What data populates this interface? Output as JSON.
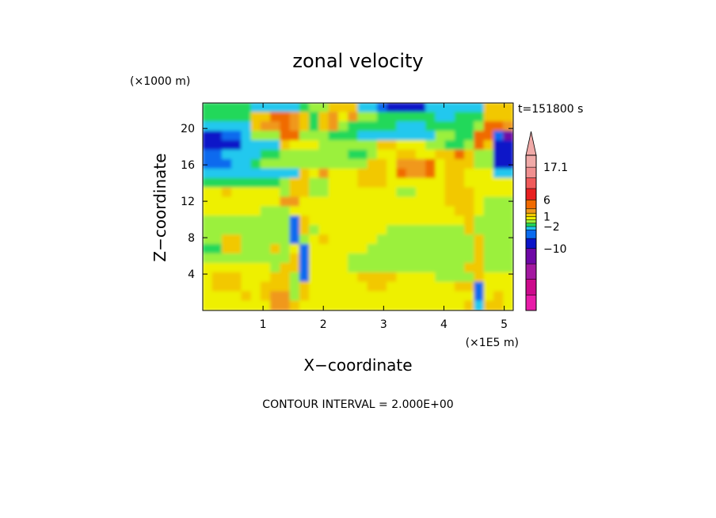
{
  "chart_data": {
    "type": "heatmap",
    "title": "zonal velocity",
    "time_label": "t=151800 s",
    "x_axis": {
      "label": "X−coordinate",
      "unit_label": "(×1E5 m)",
      "range": [
        0,
        5.15
      ],
      "ticks": [
        1,
        2,
        3,
        4,
        5
      ]
    },
    "y_axis": {
      "label": "Z−coordinate",
      "unit_label": "(×1000 m)",
      "range": [
        0,
        22.8
      ],
      "ticks": [
        4,
        8,
        12,
        16,
        20
      ]
    },
    "colorbar": {
      "colors": [
        "#e81ca8",
        "#cc0a8c",
        "#a318a0",
        "#6e08a6",
        "#0a14c8",
        "#0a6bee",
        "#22c8ee",
        "#22d85a",
        "#9bf03c",
        "#eef000",
        "#f2c800",
        "#f0981a",
        "#f06a00",
        "#e82020",
        "#f05a5a",
        "#f09090",
        "#f0aaa8"
      ],
      "labels": [
        {
          "value": "17.1",
          "boundary": 16
        },
        {
          "value": "6",
          "boundary": 13
        },
        {
          "value": "1",
          "boundary": 10
        },
        {
          "value": "−2",
          "boundary": 7
        },
        {
          "value": "−10",
          "boundary": 4
        }
      ],
      "extend": "max"
    },
    "contour_interval_label": "CONTOUR INTERVAL = 2.000E+00",
    "field_level_grid": [
      "7777766666788AAA6654444666666AAA",
      "77777AACCBA7AB9B8877777766777AAA",
      "66666ABBCBA7AB877777666777778CCB",
      "44556888CC888777666666668877CC53",
      "44446666A999888888AA99988778CA44",
      "55666677888888877899AA99AACA8844",
      "55566788888888888AA9BBBC9AAA8844",
      "6666666666A9B999AAA9CBBC9AA99966",
      "777777778AA88999AAA999999AA99999",
      "99A999998AA88999999988999AAA9999",
      "99999999BB999999999999999AAA9888",
      "99999988899999999999999999AA9888",
      "8888888885A9999999999999999A8888",
      "8888888885A8999999988888888A8888",
      "88AA88888589A999998888888888A888",
      "77AA888A89599999988888888888A888",
      "888888888A599998888888888888A888",
      "99999998AA59999888888888888AA888",
      "9AAA999AA8599999AAAA99998888A999",
      "9AAA99AAA8A999999AA9999999AA5999",
      "9999A9ABB8A9999999999999999959A9",
      "9999999BBA99999999999999999A6AA9"
    ]
  }
}
